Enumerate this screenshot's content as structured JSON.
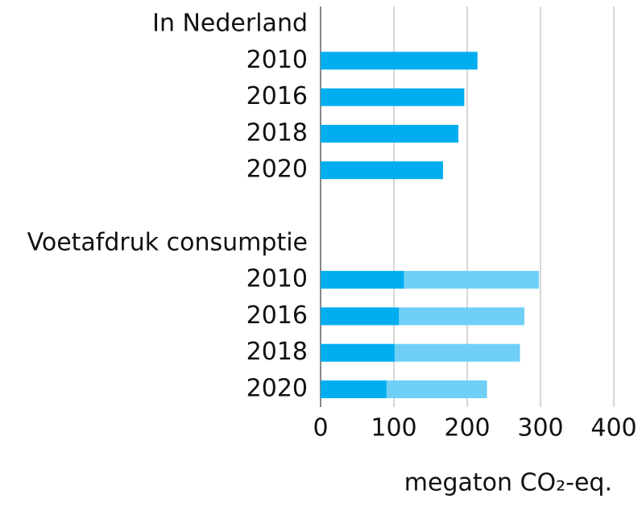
{
  "chart_data": {
    "type": "bar",
    "orientation": "horizontal",
    "stacked": true,
    "groups": [
      {
        "name": "In Nederland",
        "categories": [
          "2010",
          "2016",
          "2018",
          "2020"
        ],
        "series": [
          {
            "color": "#00aeef",
            "values": [
              214,
              196,
              188,
              167
            ]
          }
        ]
      },
      {
        "name": "Voetafdruk consumptie",
        "categories": [
          "2010",
          "2016",
          "2018",
          "2020"
        ],
        "series": [
          {
            "color": "#00aeef",
            "values": [
              114,
              107,
              101,
              90
            ]
          },
          {
            "color": "#6fcff6",
            "values": [
              184,
              171,
              171,
              137
            ]
          }
        ]
      }
    ],
    "xlim": [
      0,
      400
    ],
    "xticks": [
      0,
      100,
      200,
      300,
      400
    ],
    "grid": true,
    "x_label": "megaton CO₂-eq."
  }
}
